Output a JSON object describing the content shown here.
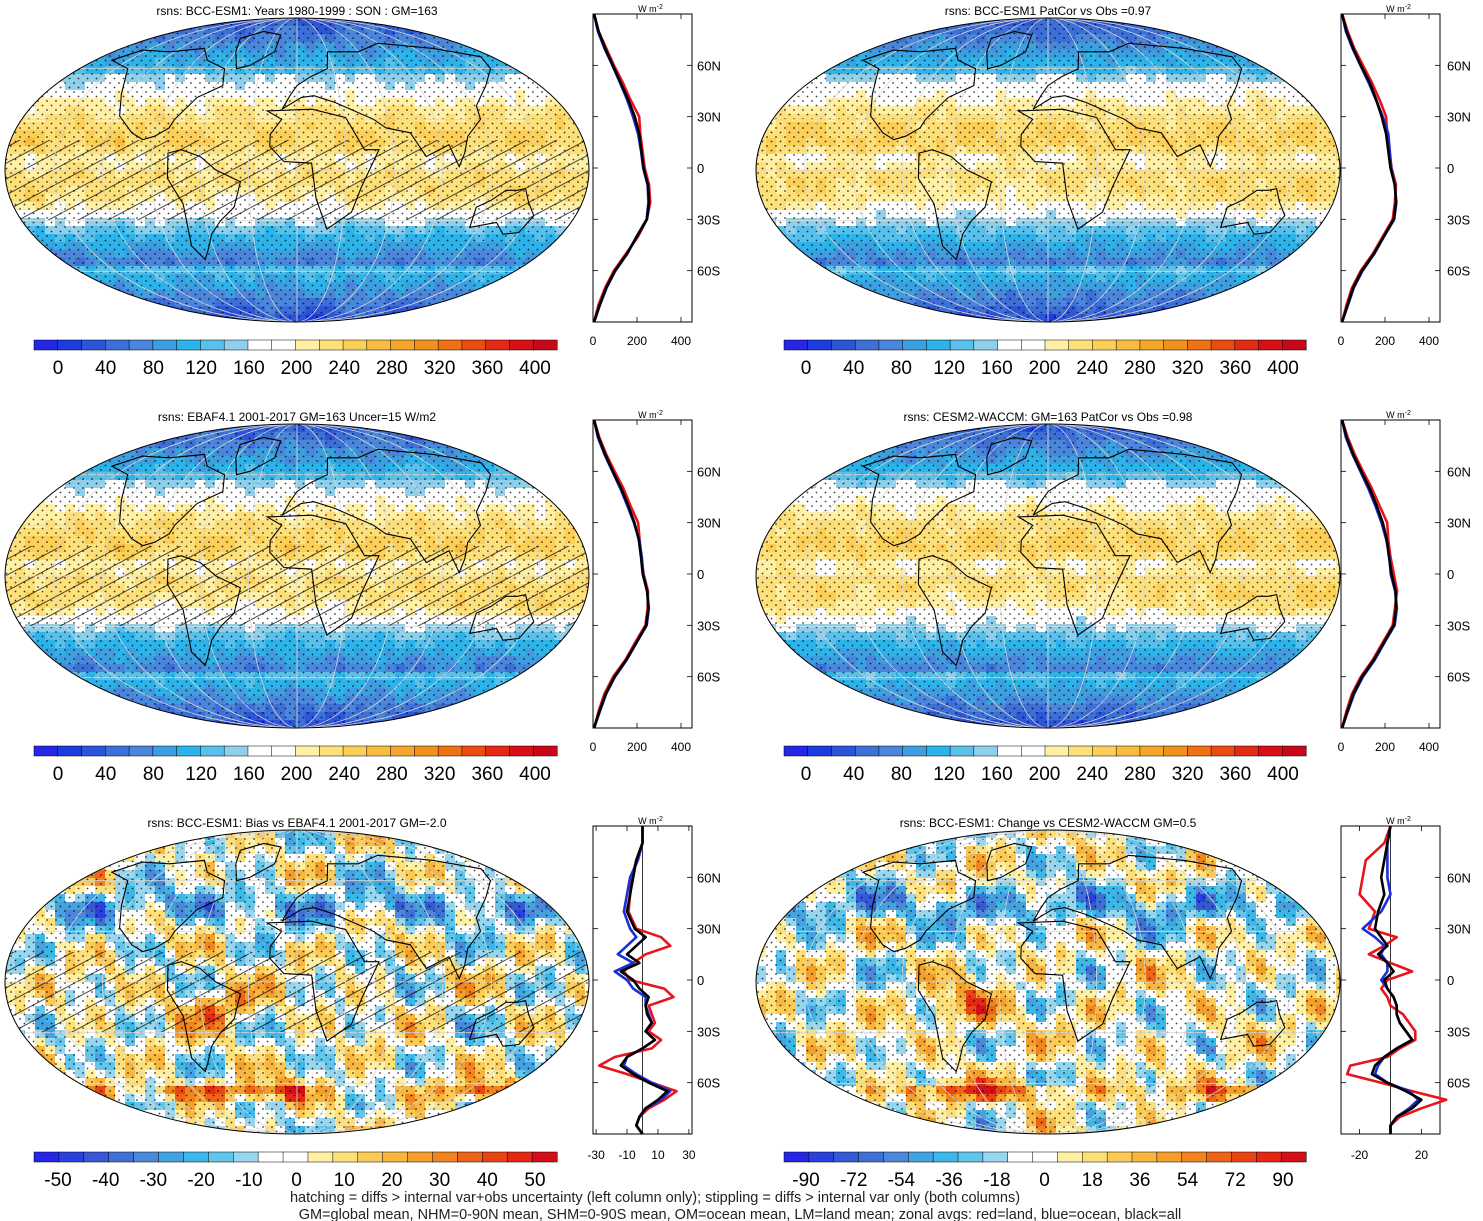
{
  "figure": {
    "caption_lines": [
      "hatching = diffs > internal var+obs uncertainty (left column only); stippling = diffs > internal var only (both columns)",
      "GM=global mean, NHM=0-90N mean, SHM=0-90S mean, OM=ocean mean, LM=land mean; zonal avgs: red=land, blue=ocean, black=all"
    ],
    "unit_label": "W m",
    "unit_exp": "-2"
  },
  "colors": {
    "land": "#e8141c",
    "ocean": "#1a2fd8",
    "all": "#000000",
    "abs_palette": [
      "#2626e6",
      "#1c3ce0",
      "#2d55d8",
      "#3c70d8",
      "#4a86dc",
      "#3ca0e0",
      "#2cb4ea",
      "#58c0ea",
      "#8ed0ec",
      "#ffffff",
      "#ffffff",
      "#fff0a6",
      "#fde07a",
      "#fbcf58",
      "#f7bc40",
      "#f4a628",
      "#f1901c",
      "#ee7214",
      "#ea4c12",
      "#e42a14",
      "#d81016",
      "#c8081a"
    ],
    "diff_palette": [
      "#2626e6",
      "#2a40de",
      "#3558d6",
      "#4070d6",
      "#4c88da",
      "#44a2e0",
      "#3cb8e8",
      "#62c6ec",
      "#96d6ee",
      "#ffffff",
      "#ffffff",
      "#fff0a6",
      "#fde07a",
      "#fbcb56",
      "#f7b640",
      "#f49e2c",
      "#f1841e",
      "#ee6418",
      "#ea4414",
      "#e42814",
      "#d40e18"
    ]
  },
  "chart_data": [
    {
      "type": "heatmap",
      "title": "rsns: BCC-ESM1: Years 1980-1999 : SON : GM=163",
      "hatching": true,
      "stippling": true,
      "colorbar": {
        "ticks": [
          "0",
          "40",
          "80",
          "120",
          "160",
          "200",
          "240",
          "280",
          "320",
          "360",
          "400"
        ],
        "min": -20,
        "max": 420,
        "palette": "abs"
      },
      "zonal_mean": {
        "xticks": [
          "0",
          "200",
          "400"
        ],
        "xlim": [
          0,
          450
        ],
        "lat_ticks": [
          "60N",
          "30N",
          "0",
          "30S",
          "60S"
        ],
        "lat": [
          90,
          80,
          70,
          60,
          50,
          40,
          30,
          20,
          10,
          0,
          -10,
          -20,
          -30,
          -40,
          -50,
          -60,
          -70,
          -80,
          -90
        ],
        "all": [
          5,
          25,
          55,
          90,
          125,
          160,
          190,
          210,
          220,
          230,
          250,
          255,
          245,
          200,
          155,
          100,
          60,
          30,
          5
        ],
        "land": [
          5,
          25,
          60,
          95,
          135,
          170,
          210,
          215,
          225,
          235,
          255,
          260,
          245,
          205,
          150,
          95,
          55,
          25,
          5
        ],
        "ocean": [
          5,
          22,
          52,
          88,
          122,
          155,
          182,
          205,
          218,
          228,
          248,
          252,
          244,
          198,
          156,
          102,
          62,
          32,
          5
        ]
      }
    },
    {
      "type": "heatmap",
      "title": "rsns: BCC-ESM1 PatCor vs Obs =0.97",
      "hatching": false,
      "stippling": true,
      "colorbar": {
        "ticks": [
          "0",
          "40",
          "80",
          "120",
          "160",
          "200",
          "240",
          "280",
          "320",
          "360",
          "400"
        ],
        "min": -20,
        "max": 420,
        "palette": "abs"
      },
      "zonal_mean": {
        "xticks": [
          "0",
          "200",
          "400"
        ],
        "xlim": [
          0,
          450
        ],
        "lat_ticks": [
          "60N",
          "30N",
          "0",
          "30S",
          "60S"
        ],
        "lat": [
          90,
          80,
          70,
          60,
          50,
          40,
          30,
          20,
          10,
          0,
          -10,
          -20,
          -30,
          -40,
          -50,
          -60,
          -70,
          -80,
          -90
        ],
        "all": [
          5,
          25,
          55,
          90,
          130,
          160,
          185,
          205,
          215,
          225,
          245,
          250,
          240,
          195,
          150,
          95,
          55,
          30,
          5
        ],
        "land": [
          5,
          30,
          60,
          100,
          140,
          175,
          205,
          210,
          220,
          230,
          250,
          245,
          235,
          190,
          145,
          90,
          50,
          25,
          5
        ],
        "ocean": [
          5,
          22,
          52,
          88,
          125,
          158,
          190,
          215,
          222,
          228,
          244,
          252,
          242,
          196,
          152,
          98,
          58,
          32,
          5
        ]
      }
    },
    {
      "type": "heatmap",
      "title": "rsns: EBAF4.1 2001-2017 GM=163 Uncer=15 W/m2",
      "hatching": true,
      "stippling": true,
      "colorbar": {
        "ticks": [
          "0",
          "40",
          "80",
          "120",
          "160",
          "200",
          "240",
          "280",
          "320",
          "360",
          "400"
        ],
        "min": -20,
        "max": 420,
        "palette": "abs"
      },
      "zonal_mean": {
        "xticks": [
          "0",
          "200",
          "400"
        ],
        "xlim": [
          0,
          450
        ],
        "lat_ticks": [
          "60N",
          "30N",
          "0",
          "30S",
          "60S"
        ],
        "lat": [
          90,
          80,
          70,
          60,
          50,
          40,
          30,
          20,
          10,
          0,
          -10,
          -20,
          -30,
          -40,
          -50,
          -60,
          -70,
          -80,
          -90
        ],
        "all": [
          5,
          25,
          55,
          90,
          128,
          160,
          188,
          208,
          218,
          226,
          246,
          252,
          242,
          198,
          152,
          98,
          58,
          30,
          5
        ],
        "land": [
          5,
          28,
          60,
          98,
          138,
          170,
          205,
          212,
          220,
          230,
          250,
          248,
          238,
          192,
          148,
          92,
          52,
          26,
          5
        ],
        "ocean": [
          5,
          22,
          52,
          88,
          124,
          156,
          186,
          210,
          222,
          228,
          246,
          254,
          244,
          198,
          154,
          100,
          60,
          32,
          5
        ]
      }
    },
    {
      "type": "heatmap",
      "title": "rsns: CESM2-WACCM: GM=163 PatCor vs Obs =0.98",
      "hatching": false,
      "stippling": true,
      "colorbar": {
        "ticks": [
          "0",
          "40",
          "80",
          "120",
          "160",
          "200",
          "240",
          "280",
          "320",
          "360",
          "400"
        ],
        "min": -20,
        "max": 420,
        "palette": "abs"
      },
      "zonal_mean": {
        "xticks": [
          "0",
          "200",
          "400"
        ],
        "xlim": [
          0,
          450
        ],
        "lat_ticks": [
          "60N",
          "30N",
          "0",
          "30S",
          "60S"
        ],
        "lat": [
          90,
          80,
          70,
          60,
          50,
          40,
          30,
          20,
          10,
          0,
          -10,
          -20,
          -30,
          -40,
          -50,
          -60,
          -70,
          -80,
          -90
        ],
        "all": [
          5,
          25,
          55,
          92,
          130,
          162,
          190,
          208,
          218,
          230,
          248,
          250,
          240,
          196,
          150,
          96,
          56,
          30,
          5
        ],
        "land": [
          5,
          30,
          62,
          100,
          140,
          175,
          210,
          215,
          225,
          240,
          255,
          245,
          235,
          190,
          145,
          90,
          50,
          25,
          5
        ],
        "ocean": [
          5,
          22,
          52,
          88,
          124,
          156,
          184,
          206,
          220,
          226,
          246,
          254,
          244,
          198,
          154,
          100,
          60,
          32,
          5
        ]
      }
    },
    {
      "type": "heatmap",
      "title": "rsns: BCC-ESM1: Bias vs EBAF4.1 2001-2017  GM=-2.0",
      "hatching": true,
      "stippling": true,
      "colorbar": {
        "ticks": [
          "-50",
          "-40",
          "-30",
          "-20",
          "-10",
          "0",
          "10",
          "20",
          "30",
          "40",
          "50"
        ],
        "min": -55,
        "max": 55,
        "palette": "diff"
      },
      "zonal_mean": {
        "xticks": [
          "-30",
          "-10",
          "10",
          "30"
        ],
        "xlim": [
          -32,
          32
        ],
        "lat_ticks": [
          "60N",
          "30N",
          "0",
          "30S",
          "60S"
        ],
        "lat": [
          90,
          80,
          70,
          60,
          50,
          40,
          30,
          25,
          20,
          15,
          10,
          5,
          0,
          -5,
          -10,
          -15,
          -20,
          -25,
          -30,
          -35,
          -40,
          -45,
          -50,
          -55,
          -60,
          -65,
          -70,
          -75,
          -80,
          -85,
          -90
        ],
        "all": [
          0,
          0,
          -4,
          -6,
          -8,
          -10,
          -5,
          2,
          -4,
          -10,
          -2,
          -14,
          -6,
          -2,
          4,
          2,
          3,
          6,
          2,
          8,
          0,
          -10,
          -14,
          -6,
          4,
          16,
          10,
          2,
          -2,
          -4,
          0
        ],
        "land": [
          0,
          0,
          -4,
          -7,
          -8,
          -9,
          -4,
          12,
          18,
          2,
          -6,
          -12,
          -8,
          14,
          20,
          4,
          6,
          8,
          4,
          12,
          6,
          -18,
          -28,
          -10,
          6,
          22,
          14,
          4,
          -2,
          -4,
          0
        ],
        "ocean": [
          0,
          0,
          -3,
          -8,
          -10,
          -12,
          -8,
          -4,
          -10,
          -16,
          -6,
          -18,
          -10,
          -6,
          2,
          2,
          4,
          6,
          2,
          8,
          0,
          -10,
          -12,
          -4,
          6,
          18,
          12,
          2,
          -2,
          -4,
          0
        ]
      }
    },
    {
      "type": "heatmap",
      "title": "rsns: BCC-ESM1: Change vs CESM2-WACCM GM=0.5",
      "hatching": false,
      "stippling": true,
      "colorbar": {
        "ticks": [
          "-90",
          "-72",
          "-54",
          "-36",
          "-18",
          "0",
          "18",
          "36",
          "54",
          "72",
          "90"
        ],
        "min": -99,
        "max": 99,
        "palette": "diff"
      },
      "zonal_mean": {
        "xticks": [
          "-20",
          "20"
        ],
        "xlim": [
          -32,
          32
        ],
        "lat_ticks": [
          "60N",
          "30N",
          "0",
          "30S",
          "60S"
        ],
        "lat": [
          90,
          80,
          70,
          60,
          50,
          40,
          30,
          25,
          20,
          15,
          10,
          5,
          0,
          -5,
          -10,
          -15,
          -20,
          -25,
          -30,
          -35,
          -40,
          -45,
          -50,
          -55,
          -60,
          -65,
          -70,
          -75,
          -80,
          -85,
          -90
        ],
        "all": [
          0,
          -2,
          -4,
          -6,
          -4,
          -8,
          -10,
          -6,
          -2,
          -8,
          -2,
          2,
          -4,
          -2,
          2,
          4,
          4,
          6,
          10,
          14,
          4,
          -4,
          -10,
          -12,
          -2,
          10,
          20,
          14,
          4,
          0,
          0
        ],
        "land": [
          0,
          -4,
          -16,
          -18,
          -20,
          -10,
          -14,
          4,
          -4,
          -14,
          0,
          14,
          -2,
          -6,
          -2,
          0,
          8,
          12,
          16,
          16,
          6,
          -2,
          -26,
          -28,
          -6,
          14,
          36,
          20,
          6,
          0,
          0
        ],
        "ocean": [
          0,
          -2,
          -2,
          -2,
          0,
          -6,
          -18,
          -10,
          -4,
          -6,
          -2,
          -2,
          -6,
          -2,
          2,
          4,
          4,
          6,
          10,
          14,
          4,
          -4,
          -8,
          -10,
          -2,
          12,
          18,
          12,
          4,
          0,
          0
        ]
      }
    }
  ]
}
